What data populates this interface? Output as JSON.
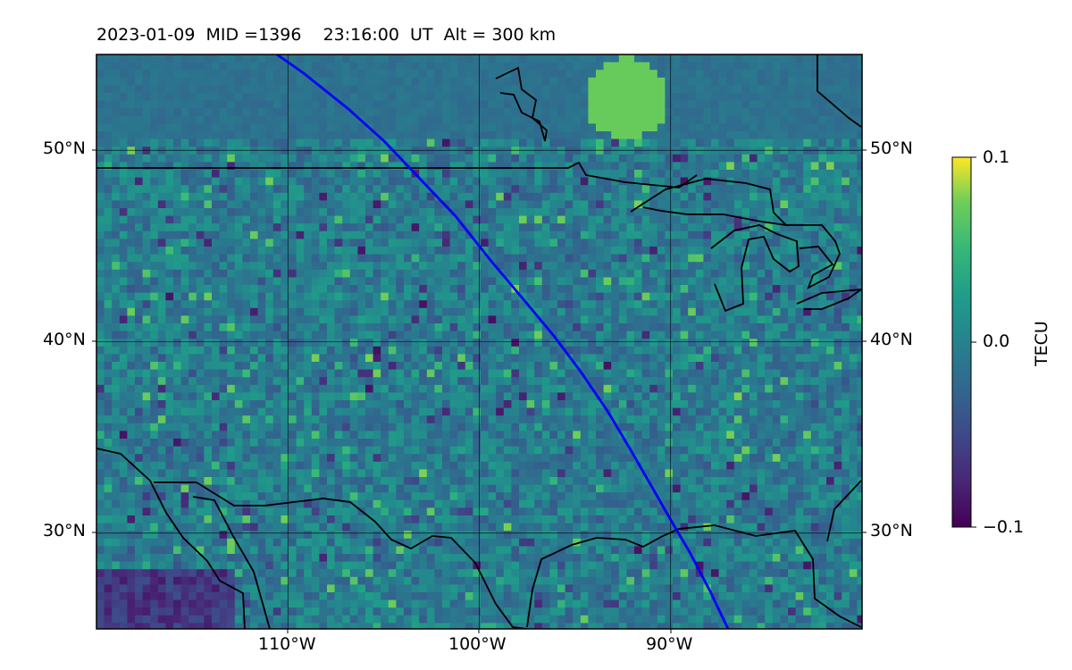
{
  "header": {
    "title": "2023-01-09  MID =1396    23:16:00  UT  Alt = 300 km"
  },
  "map": {
    "projection": "plate-carree",
    "lon_range": [
      -120,
      -80
    ],
    "lat_range": [
      25,
      55
    ],
    "gridlines": {
      "lons": [
        -110,
        -100,
        -90
      ],
      "lats": [
        30,
        40,
        50
      ]
    },
    "lon_labels": [
      "110°W",
      "100°W",
      "90°W"
    ],
    "lat_labels": [
      "30°N",
      "40°N",
      "50°N"
    ],
    "overlay_track_color": "#0000ff",
    "coastline_color": "#000000",
    "colormap": "viridis"
  },
  "colorbar": {
    "label": "TECU",
    "min": -0.1,
    "max": 0.1,
    "ticks": [
      "0.1",
      "0.0",
      "−0.1"
    ]
  }
}
